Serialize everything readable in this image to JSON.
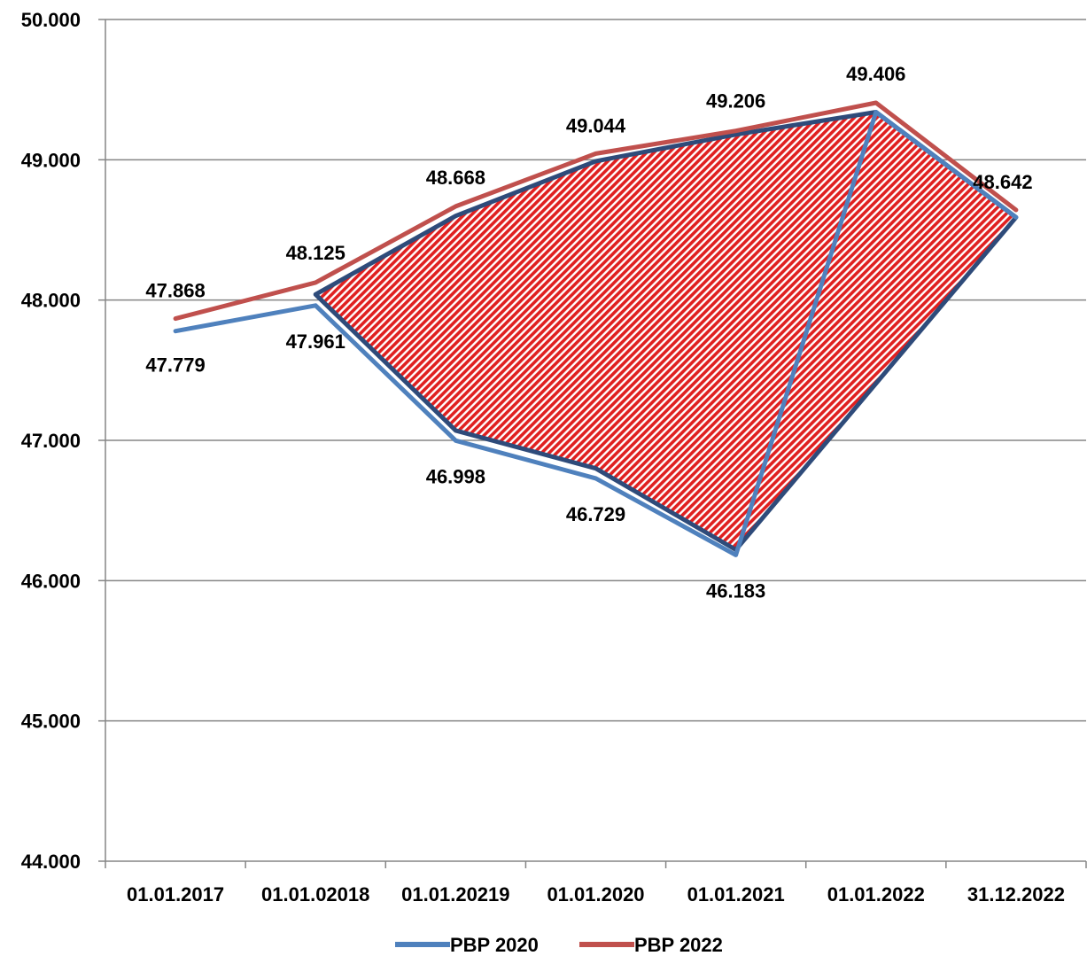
{
  "chart_data": {
    "type": "line",
    "categories": [
      "01.01.2017",
      "01.01.02018",
      "01.01.20219",
      "01.01.2020",
      "01.01.2021",
      "01.01.2022",
      "31.12.2022"
    ],
    "y_ticks": [
      "44.000",
      "45.000",
      "46.000",
      "47.000",
      "48.000",
      "49.000",
      "50.000"
    ],
    "ylim": [
      44000,
      50000
    ],
    "grid": true,
    "legend_position": "bottom",
    "series": [
      {
        "name": "PBP 2020",
        "color": "#4F81BD",
        "values": [
          47779,
          47961,
          46998,
          46729,
          46183,
          49340,
          48590
        ],
        "labels": [
          "47.779",
          "47.961",
          "46.998",
          "46.729",
          "46.183",
          "",
          ""
        ]
      },
      {
        "name": "PBP 2022",
        "color": "#C0504D",
        "values": [
          47868,
          48125,
          48668,
          49044,
          49206,
          49406,
          48642
        ],
        "labels": [
          "47.868",
          "48.125",
          "48.668",
          "49.044",
          "49.206",
          "49.406",
          "48.642"
        ]
      }
    ],
    "highlight_region": {
      "fill": "#E02020",
      "outline": "#2E4B7A",
      "points": [
        [
          1,
          48040
        ],
        [
          2,
          48600
        ],
        [
          3,
          48990
        ],
        [
          4,
          49180
        ],
        [
          5,
          49340
        ],
        [
          6,
          48590
        ],
        [
          4,
          46220
        ],
        [
          3,
          46800
        ],
        [
          2,
          47070
        ],
        [
          1,
          48040
        ]
      ]
    }
  }
}
